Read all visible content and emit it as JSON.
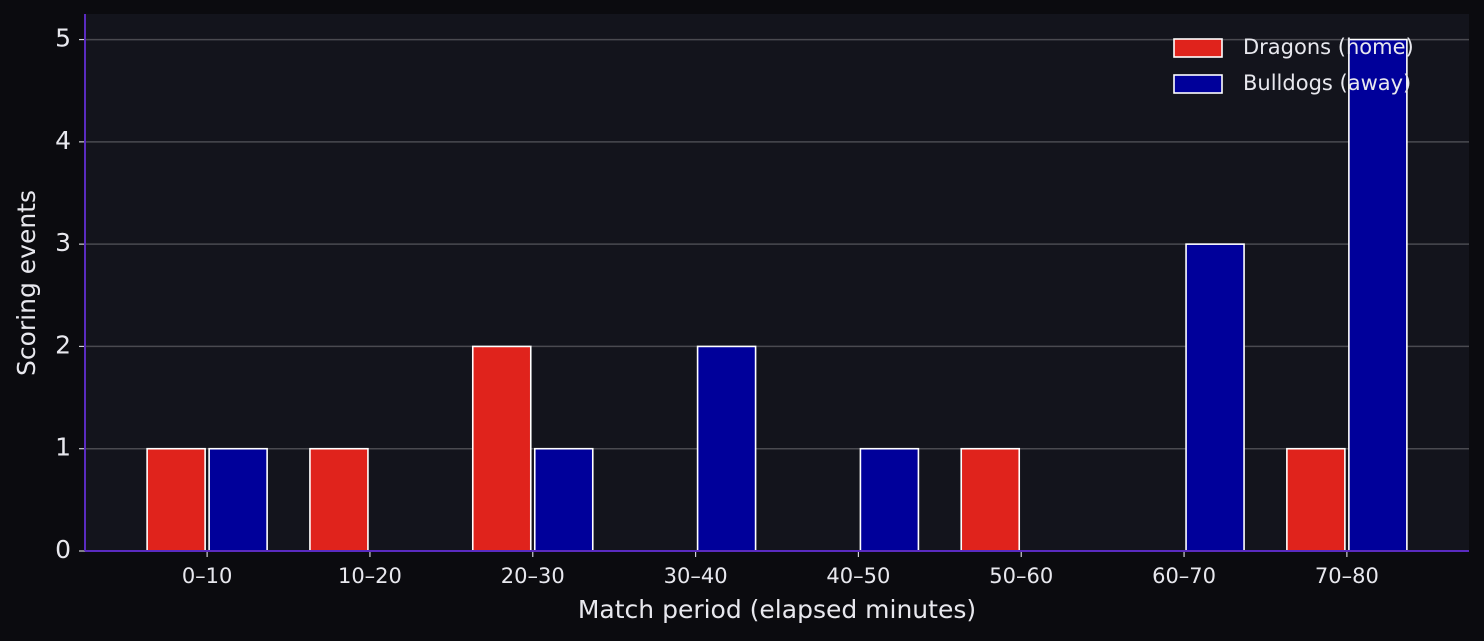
{
  "chart_data": {
    "type": "bar",
    "xlabel": "Match period (elapsed minutes)",
    "ylabel": "Scoring events",
    "categories": [
      "0–10",
      "10–20",
      "20–30",
      "30–40",
      "40–50",
      "50–60",
      "60–70",
      "70–80"
    ],
    "series": [
      {
        "name": "Dragons (home)",
        "color": "#e0231c",
        "values": [
          1,
          1,
          2,
          0,
          0,
          1,
          0,
          1
        ]
      },
      {
        "name": "Bulldogs (away)",
        "color": "#00009a",
        "values": [
          1,
          0,
          1,
          2,
          1,
          0,
          3,
          5
        ]
      }
    ],
    "ylim": [
      0,
      5.25
    ],
    "yticks": [
      0,
      1,
      2,
      3,
      4,
      5
    ],
    "grid": true,
    "legend": "upper right"
  }
}
